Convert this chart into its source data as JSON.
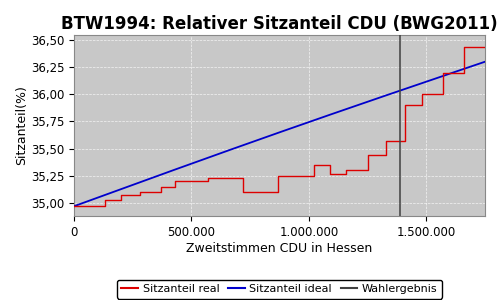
{
  "title": "BTW1994: Relativer Sitzanteil CDU (BWG2011)",
  "xlabel": "Zweitstimmen CDU in Hessen",
  "ylabel": "Sitzanteil(%)",
  "xlim": [
    0,
    1750000
  ],
  "ylim": [
    34.88,
    36.55
  ],
  "yticks": [
    35.0,
    35.25,
    35.5,
    35.75,
    36.0,
    36.25,
    36.5
  ],
  "xticks": [
    0,
    500000,
    1000000,
    1500000
  ],
  "wahlergebnis_x": 1390000,
  "background_color": "#c8c8c8",
  "ideal_color": "#0000cc",
  "real_color": "#dd0000",
  "wahlergebnis_color": "#404040",
  "legend_labels": [
    "Sitzanteil real",
    "Sitzanteil ideal",
    "Wahlergebnis"
  ],
  "title_fontsize": 12,
  "axis_fontsize": 9,
  "tick_fontsize": 8.5,
  "real_start": 34.97,
  "real_end": 36.44,
  "ideal_start": 34.97,
  "ideal_end": 36.3,
  "n_stairs": 22,
  "stair_seed": 17
}
